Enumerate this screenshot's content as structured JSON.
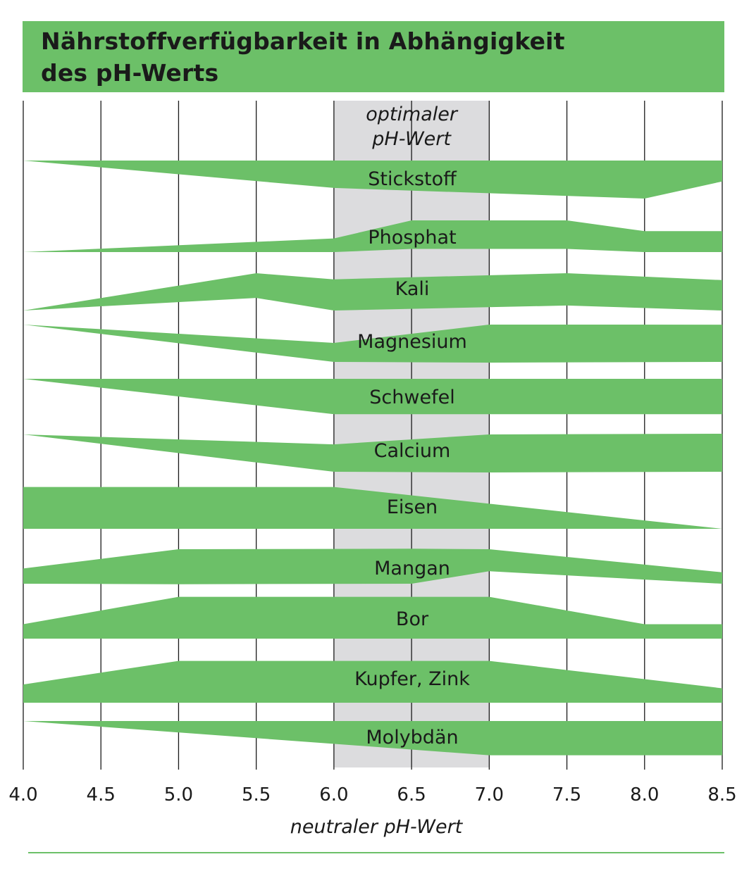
{
  "title": {
    "line1": "Nährstoffverfügbarkeit in Abhängigkeit",
    "line2": "des pH-Werts"
  },
  "colors": {
    "band": "#6cc068",
    "optimal_zone": "#dcdcde",
    "gridline": "#1a1a1a",
    "title_bg": "#6cc068"
  },
  "chart_data": {
    "type": "area",
    "title": "Nährstoffverfügbarkeit in Abhängigkeit des pH-Werts",
    "xlabel": "neutraler pH-Wert",
    "ylabel": "",
    "xlim": [
      4.0,
      8.5
    ],
    "x_ticks": [
      4.0,
      4.5,
      5.0,
      5.5,
      6.0,
      6.5,
      7.0,
      7.5,
      8.0,
      8.5
    ],
    "x_tick_labels": [
      "4.0",
      "4.5",
      "5.0",
      "5.5",
      "6.0",
      "6.5",
      "7.0",
      "7.5",
      "8.0",
      "8.5"
    ],
    "optimal_range": [
      6.0,
      7.0
    ],
    "optimal_label_line1": "optimaler",
    "optimal_label_line2": "pH-Wert",
    "width_unit": "relative availability (band thickness, max = 1)",
    "series": [
      {
        "name": "Stickstoff",
        "x": [
          4.0,
          6.0,
          8.0,
          8.5
        ],
        "values": [
          0.0,
          0.72,
          1.0,
          0.55
        ],
        "upper": [
          1,
          1,
          1,
          1
        ]
      },
      {
        "name": "Phosphat",
        "x": [
          4.0,
          6.0,
          6.5,
          7.5,
          8.0,
          8.5
        ],
        "values": [
          0.0,
          0.36,
          0.75,
          0.75,
          0.55,
          0.55
        ],
        "upper": [
          0,
          0,
          1,
          1,
          0,
          0
        ]
      },
      {
        "name": "Kali",
        "x": [
          4.0,
          5.5,
          6.0,
          7.5,
          8.5
        ],
        "values": [
          0.0,
          0.65,
          0.82,
          0.85,
          0.8
        ],
        "upper": [
          0,
          1,
          0,
          1,
          0
        ]
      },
      {
        "name": "Magnesium",
        "x": [
          4.0,
          6.0,
          7.0,
          8.5
        ],
        "values": [
          0.0,
          0.5,
          1.0,
          0.98
        ],
        "upper": [
          1,
          0,
          1,
          0
        ]
      },
      {
        "name": "Schwefel",
        "x": [
          4.0,
          6.0,
          8.5
        ],
        "values": [
          0.0,
          0.93,
          0.93
        ],
        "upper": [
          1,
          1,
          1
        ]
      },
      {
        "name": "Calcium",
        "x": [
          4.0,
          6.0,
          7.0,
          8.5
        ],
        "values": [
          0.0,
          0.72,
          1.0,
          1.0
        ],
        "upper": [
          1,
          0,
          1,
          0
        ]
      },
      {
        "name": "Eisen",
        "x": [
          4.0,
          6.0,
          8.5
        ],
        "values": [
          1.1,
          1.1,
          0.0
        ],
        "upper": [
          0,
          0,
          0
        ]
      },
      {
        "name": "Mangan",
        "x": [
          4.0,
          5.0,
          6.5,
          7.0,
          8.5
        ],
        "values": [
          0.4,
          0.92,
          0.92,
          0.58,
          0.3
        ],
        "upper": [
          0,
          1,
          0,
          1,
          0
        ]
      },
      {
        "name": "Bor",
        "x": [
          4.0,
          5.0,
          7.0,
          8.0,
          8.5
        ],
        "values": [
          0.38,
          1.1,
          1.1,
          0.38,
          0.38
        ],
        "upper": [
          0,
          0,
          0,
          0,
          0
        ]
      },
      {
        "name": "Kupfer, Zink",
        "x": [
          4.0,
          5.0,
          7.0,
          8.5
        ],
        "values": [
          0.48,
          1.1,
          1.1,
          0.38
        ],
        "upper": [
          0,
          0,
          0,
          0
        ]
      },
      {
        "name": "Molybdän",
        "x": [
          4.0,
          7.0,
          8.5
        ],
        "values": [
          0.0,
          0.9,
          0.9
        ],
        "upper": [
          1,
          1,
          1
        ]
      }
    ]
  }
}
